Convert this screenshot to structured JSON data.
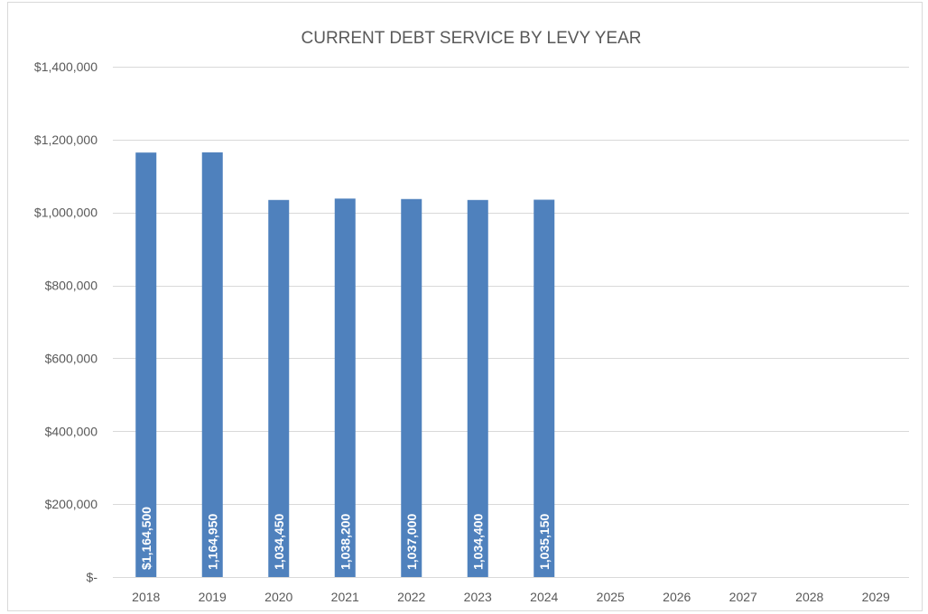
{
  "chart_data": {
    "type": "bar",
    "title": "CURRENT DEBT SERVICE BY LEVY YEAR",
    "xlabel": "",
    "ylabel": "",
    "categories": [
      "2018",
      "2019",
      "2020",
      "2021",
      "2022",
      "2023",
      "2024",
      "2025",
      "2026",
      "2027",
      "2028",
      "2029"
    ],
    "values": [
      1164500,
      1164950,
      1034450,
      1038200,
      1037000,
      1034400,
      1035150,
      null,
      null,
      null,
      null,
      null
    ],
    "data_labels": [
      "$1,164,500",
      "1,164,950",
      "1,034,450",
      "1,038,200",
      "1,037,000",
      "1,034,400",
      "1,035,150",
      "",
      "",
      "",
      "",
      ""
    ],
    "ylim": [
      0,
      1400000
    ],
    "yticks": [
      0,
      200000,
      400000,
      600000,
      800000,
      1000000,
      1200000,
      1400000
    ],
    "ytick_labels": [
      "$-",
      "$200,000",
      "$400,000",
      "$600,000",
      "$800,000",
      "$1,000,000",
      "$1,200,000",
      "$1,400,000"
    ],
    "bar_color": "#4f81bd",
    "grid": true,
    "legend": "none"
  }
}
